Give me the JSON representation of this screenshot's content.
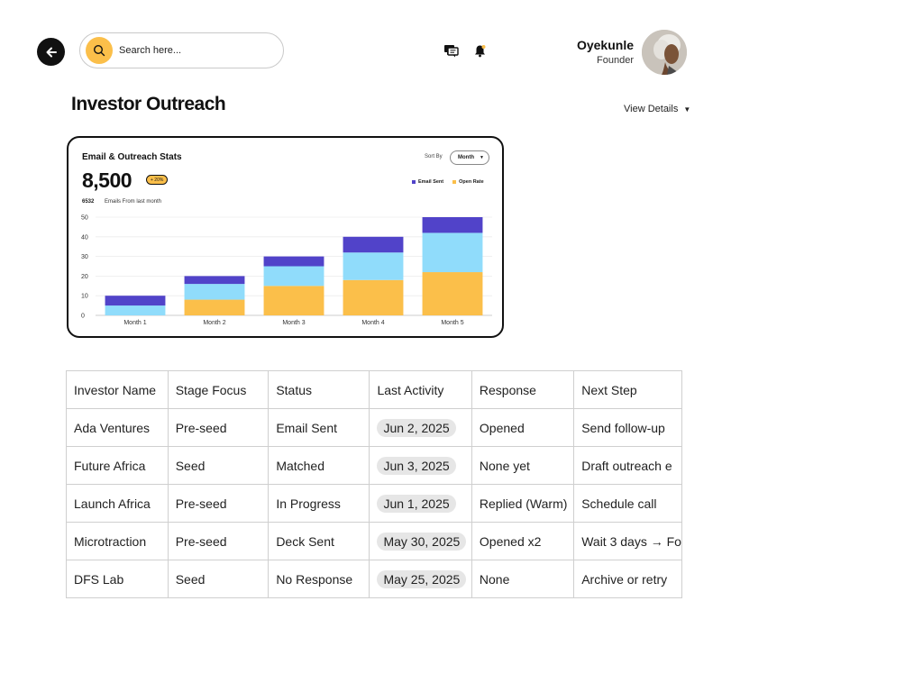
{
  "header": {
    "search_placeholder": "Search here...",
    "user_name": "Oyekunle",
    "user_role": "Founder",
    "icons": [
      "back-arrow-icon",
      "search-icon",
      "chat-icon",
      "bell-icon"
    ]
  },
  "page": {
    "title": "Investor Outreach",
    "view_details": "View Details"
  },
  "stats_card": {
    "title": "Email & Outreach Stats",
    "sort_label": "Sort By",
    "sort_value": "Month",
    "big_number": "8,500",
    "badge": "+ 20%",
    "sub_count": "6532",
    "sub_label": "Emails From last month"
  },
  "colors": {
    "accent": "#fbbf4a",
    "email_sent": "#5143c9",
    "open_rate": "#fbbf4a",
    "light_blue": "#90dcfb"
  },
  "chart_data": {
    "type": "bar",
    "stacked": true,
    "categories": [
      "Month 1",
      "Month 2",
      "Month 3",
      "Month 4",
      "Month 5"
    ],
    "series": [
      {
        "name": "Open Rate",
        "color": "#fbbf4a",
        "values": [
          0,
          8,
          15,
          18,
          22
        ]
      },
      {
        "color": "#90dcfb",
        "values": [
          5,
          8,
          10,
          14,
          20
        ]
      },
      {
        "name": "Email Sent",
        "color": "#5143c9",
        "values": [
          5,
          4,
          5,
          8,
          8
        ]
      }
    ],
    "ylim": [
      0,
      50
    ],
    "yticks": [
      "0",
      "10",
      "20",
      "30",
      "40",
      "50"
    ],
    "grid": true,
    "legend": "top-right"
  },
  "table": {
    "headers": [
      "Investor Name",
      "Stage Focus",
      "Status",
      "Last Activity",
      "Response",
      "Next Step"
    ],
    "rows": [
      [
        "Ada Ventures",
        "Pre-seed",
        "Email Sent",
        "Jun 2, 2025",
        "Opened",
        "Send follow-up"
      ],
      [
        "Future Africa",
        "Seed",
        "Matched",
        "Jun 3, 2025",
        "None yet",
        "Draft outreach e"
      ],
      [
        "Launch Africa",
        "Pre-seed",
        "In Progress",
        "Jun 1, 2025",
        "Replied (Warm)",
        "Schedule call"
      ],
      [
        "Microtraction",
        "Pre-seed",
        "Deck Sent",
        "May 30, 2025",
        "Opened x2",
        "Wait 3 days → Fo"
      ],
      [
        "DFS Lab",
        "Seed",
        "No Response",
        "May 25, 2025",
        "None",
        "Archive or retry"
      ]
    ]
  }
}
